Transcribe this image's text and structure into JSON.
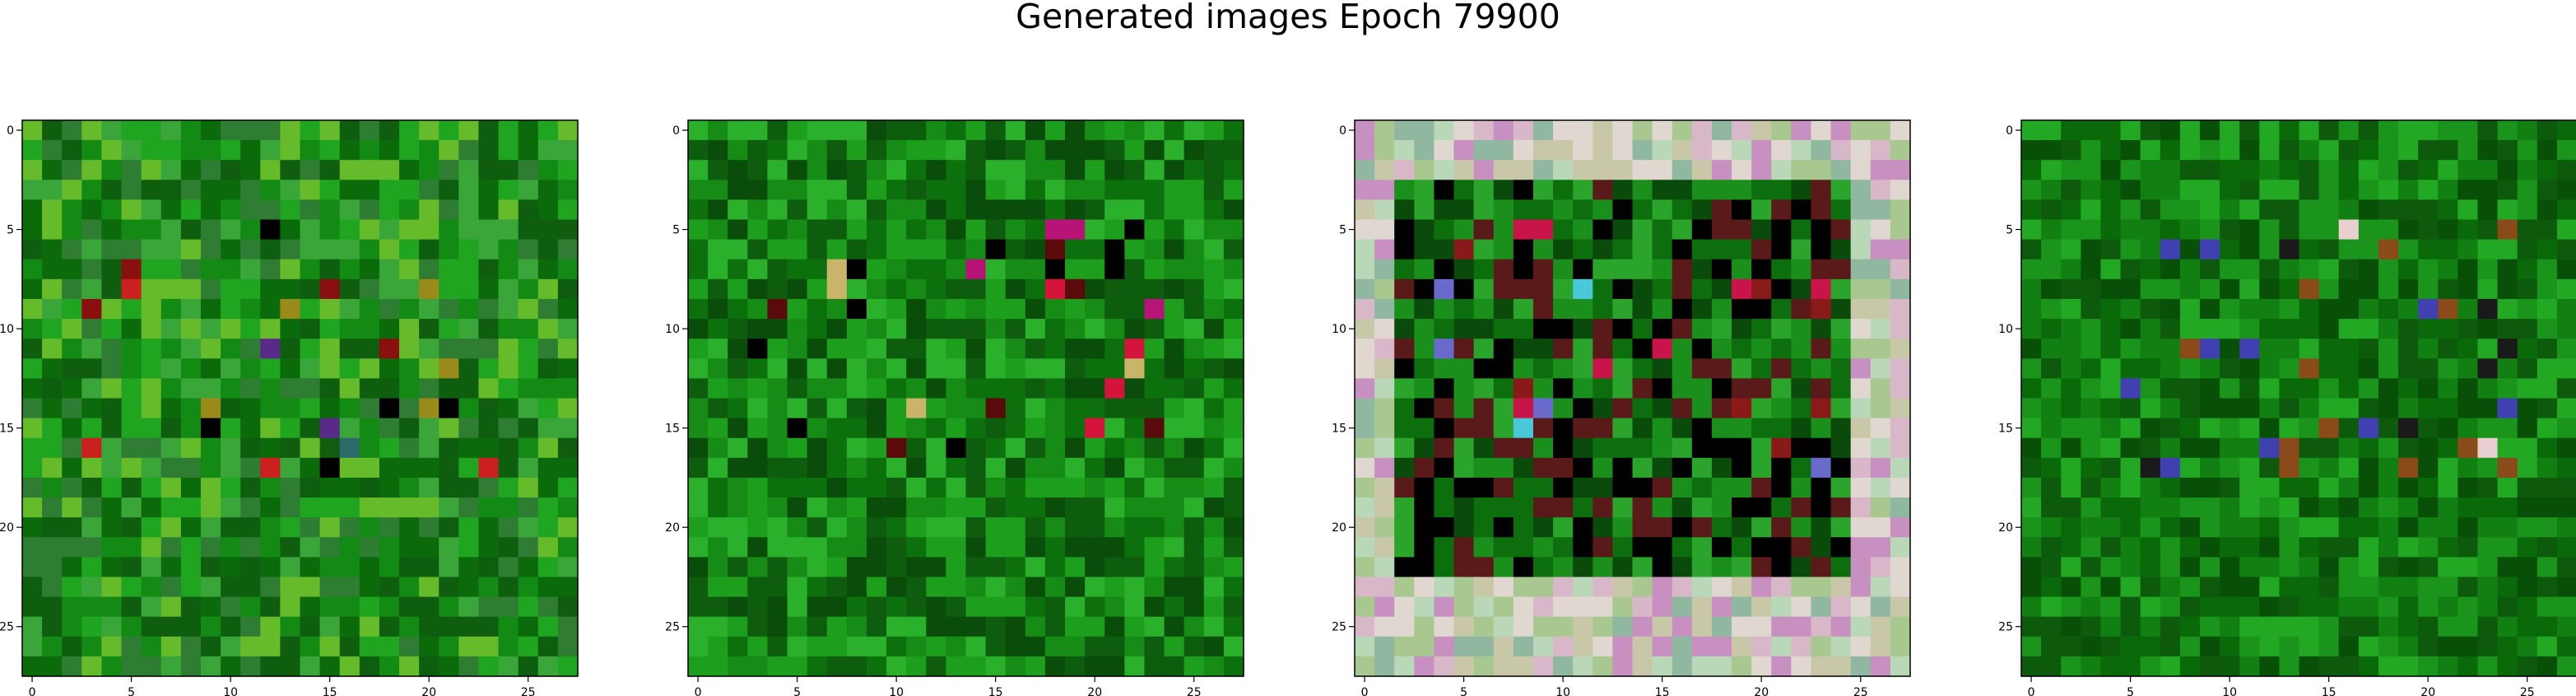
{
  "title": "Generated images Epoch 79900",
  "chart_data": [
    {
      "type": "heatmap",
      "title": "",
      "xlabel": "",
      "ylabel": "",
      "grid_size": [
        28,
        28
      ],
      "xlim": [
        -0.5,
        27.5
      ],
      "ylim": [
        27.5,
        -0.5
      ],
      "x_ticks": [
        0,
        5,
        10,
        15,
        20,
        25
      ],
      "y_ticks": [
        0,
        5,
        10,
        15,
        20,
        25
      ],
      "grid": false,
      "palette": [
        "#0b6b0b",
        "#138a13",
        "#1fa51f",
        "#2e7d32",
        "#66bb2a",
        "#3aa63a",
        "#0f5e0f"
      ],
      "accents": [
        [
          "#000000",
          "#cc1f1f",
          "#8a1010",
          "#5a2a8a",
          "#2a6a6a",
          "#9a8a1a"
        ]
      ],
      "style": "green"
    },
    {
      "type": "heatmap",
      "title": "",
      "xlabel": "",
      "ylabel": "",
      "grid_size": [
        28,
        28
      ],
      "xlim": [
        -0.5,
        27.5
      ],
      "ylim": [
        27.5,
        -0.5
      ],
      "x_ticks": [
        0,
        5,
        10,
        15,
        20,
        25
      ],
      "y_ticks": [
        0,
        5,
        10,
        15,
        20,
        25
      ],
      "grid": false,
      "palette": [
        "#0c700c",
        "#168c16",
        "#1d9e1d",
        "#0e5c0e",
        "#2bb02b",
        "#0a4d0a"
      ],
      "accents": [
        [
          "#000000",
          "#d4143a",
          "#c9b46a",
          "#b81478",
          "#5a0a0a"
        ]
      ],
      "style": "green"
    },
    {
      "type": "heatmap",
      "title": "",
      "xlabel": "",
      "ylabel": "",
      "grid_size": [
        28,
        28
      ],
      "xlim": [
        -0.5,
        27.5
      ],
      "ylim": [
        27.5,
        -0.5
      ],
      "x_ticks": [
        0,
        5,
        10,
        15,
        20,
        25
      ],
      "y_ticks": [
        0,
        5,
        10,
        15,
        20,
        25
      ],
      "grid": false,
      "palette": [
        "#0d6e0d",
        "#1b8f1b",
        "#0a4a0a",
        "#2aa42a",
        "#000000",
        "#5a1a1a"
      ],
      "border_palette": [
        "#c8c8a8",
        "#d8b8c8",
        "#b8d8b8",
        "#a8c890",
        "#e0d8d0",
        "#c890c0",
        "#90b8a0"
      ],
      "accents": [
        [
          "#8a1a1a",
          "#6a6acc",
          "#c81448",
          "#48c8d8"
        ]
      ],
      "style": "bordered"
    },
    {
      "type": "heatmap",
      "title": "",
      "xlabel": "",
      "ylabel": "",
      "grid_size": [
        28,
        28
      ],
      "xlim": [
        -0.5,
        27.5
      ],
      "ylim": [
        27.5,
        -0.5
      ],
      "x_ticks": [
        0,
        5,
        10,
        15,
        20,
        25
      ],
      "y_ticks": [
        0,
        5,
        10,
        15,
        20,
        25
      ],
      "grid": false,
      "palette": [
        "#0a6a0a",
        "#127f12",
        "#1a941a",
        "#0d5a0d",
        "#22a822",
        "#085008"
      ],
      "accents": [
        [
          "#e8d0d0",
          "#4040b0",
          "#8a4a1a",
          "#1a1a1a"
        ]
      ],
      "style": "green"
    }
  ]
}
